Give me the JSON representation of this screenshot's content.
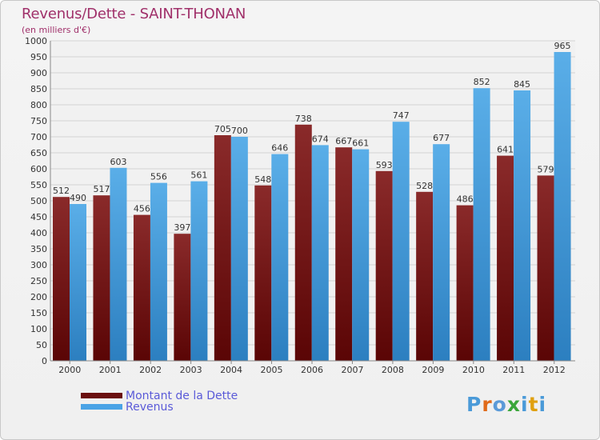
{
  "chart_data": {
    "type": "bar",
    "title": "Revenus/Dette - SAINT-THONAN",
    "subtitle": "(en milliers d'€)",
    "xlabel": "",
    "ylabel": "",
    "ylim": [
      0,
      1000
    ],
    "ytick_step": 50,
    "grid": true,
    "legend_position": "bottom-left",
    "categories": [
      "2000",
      "2001",
      "2002",
      "2003",
      "2004",
      "2005",
      "2006",
      "2007",
      "2008",
      "2009",
      "2010",
      "2011",
      "2012"
    ],
    "series": [
      {
        "name": "Montant de la Dette",
        "color": "#7a1a1a",
        "values": [
          512,
          517,
          456,
          397,
          705,
          548,
          738,
          667,
          593,
          528,
          486,
          641,
          579
        ]
      },
      {
        "name": "Revenus",
        "color": "#4aa3e6",
        "values": [
          490,
          603,
          556,
          561,
          700,
          646,
          674,
          661,
          747,
          677,
          852,
          845,
          965
        ]
      }
    ]
  },
  "logo": {
    "text": "Proxiti",
    "colors": [
      "#4a9ad8",
      "#e06a1a",
      "#5a9ad8",
      "#3aa63a",
      "#4a9ad8",
      "#e0a010",
      "#4a9ad8"
    ]
  }
}
